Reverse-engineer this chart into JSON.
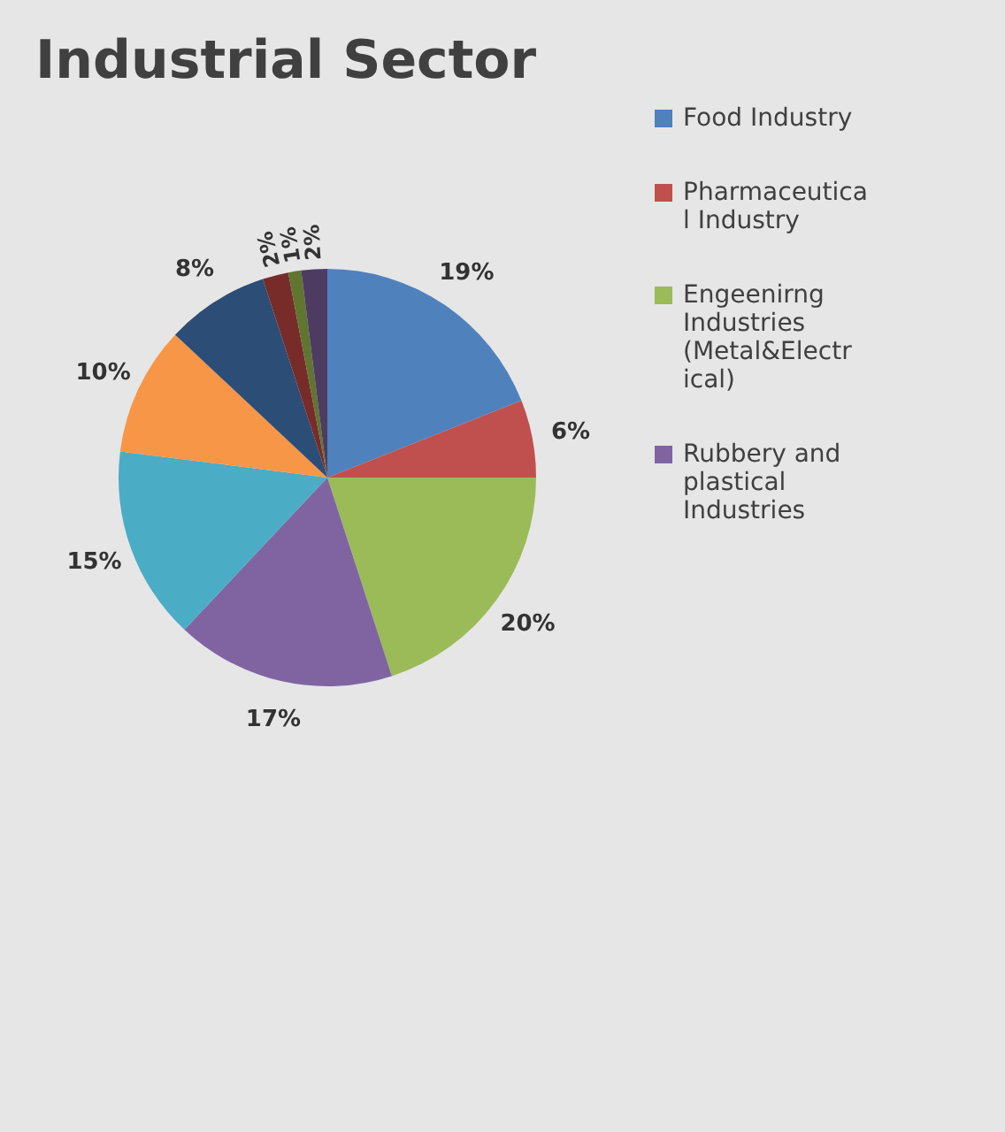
{
  "chart_data": {
    "type": "pie",
    "title": "Industrial Sector",
    "categories": [
      "Food Industry",
      "Pharmaceutical Industry",
      "Engeenirng Industries (Metal&Electrical)",
      "Rubbery and plastical Industries",
      null,
      null,
      null,
      null,
      null,
      null
    ],
    "values": [
      19,
      6,
      20,
      17,
      15,
      10,
      8,
      2,
      1,
      2
    ],
    "value_labels": [
      "19%",
      "6%",
      "20%",
      "17%",
      "15%",
      "10%",
      "8%",
      "2%",
      "1%",
      "2%"
    ],
    "colors": [
      "#4f81bd",
      "#c0504d",
      "#9bbb59",
      "#8064a2",
      "#4bacc6",
      "#f79646",
      "#2c4d75",
      "#772c2a",
      "#5f7530",
      "#4d3b62"
    ],
    "legend": "right"
  }
}
